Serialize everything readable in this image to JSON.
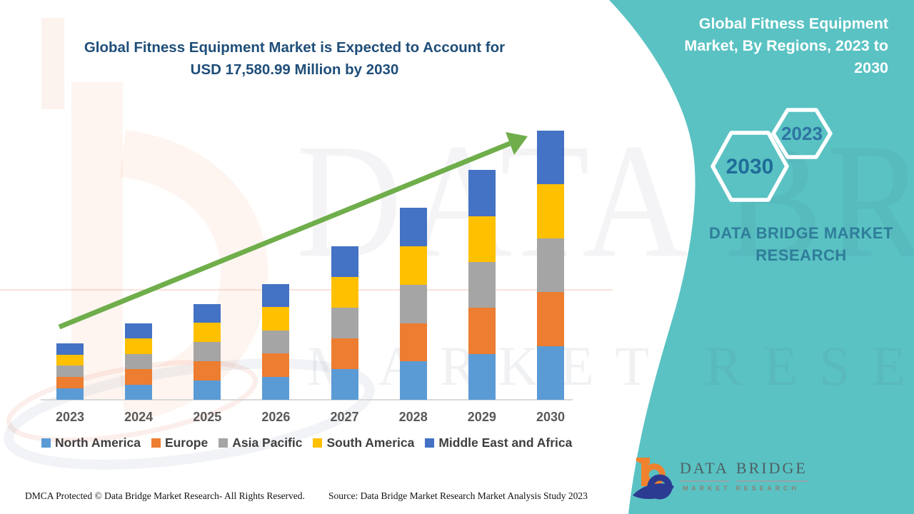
{
  "header": {
    "title_line1": "Global Fitness Equipment Market is Expected to Account for",
    "title_line2": "USD 17,580.99 Million by 2030"
  },
  "sidebar": {
    "title_lines": [
      "Global Fitness Equipment",
      "Market, By Regions, 2023 to",
      "2030"
    ],
    "hexagons": [
      {
        "label": "2023"
      },
      {
        "label": "2030"
      }
    ],
    "brand_line1": "DATA BRIDGE MARKET",
    "brand_line2": "RESEARCH",
    "panel_color": "#5AC2C3",
    "hex_label_color": "#2A6F9E"
  },
  "watermark": {
    "big_text": "DATA BRIDGE",
    "sub_text": "MARKET RESEARCH"
  },
  "footer": {
    "dmca_text": "DMCA Protected © Data Bridge Market Research- All Rights Reserved.",
    "source_text": "Source: Data Bridge Market Research Market Analysis Study 2023",
    "logo": {
      "word1": "DATA",
      "word2": "BRIDGE",
      "tagline": "MARKET RESEARCH"
    }
  },
  "chart_data": {
    "type": "bar",
    "stacked": true,
    "title": "Global Fitness Equipment Market, By Regions, 2023 to 2030",
    "unit": "USD Million",
    "headline_value_2030": "17,580.99",
    "categories": [
      "2023",
      "2024",
      "2025",
      "2026",
      "2027",
      "2028",
      "2029",
      "2030"
    ],
    "series": [
      {
        "name": "North America",
        "color": "#5B9BD5",
        "values": [
          740,
          1000,
          1254,
          1514,
          2006,
          2506,
          3000,
          3516
        ]
      },
      {
        "name": "Europe",
        "color": "#ED7D31",
        "values": [
          740,
          1000,
          1254,
          1514,
          2006,
          2506,
          3000,
          3516
        ]
      },
      {
        "name": "Asia Pacific",
        "color": "#A5A5A5",
        "values": [
          740,
          1000,
          1254,
          1514,
          2006,
          2506,
          3000,
          3516
        ]
      },
      {
        "name": "South America",
        "color": "#FFC000",
        "values": [
          740,
          1000,
          1254,
          1514,
          2006,
          2506,
          3000,
          3516
        ]
      },
      {
        "name": "Middle East and Africa",
        "color": "#4472C4",
        "values": [
          740,
          1000,
          1254,
          1514,
          2006,
          2506,
          3000,
          3517
        ]
      }
    ],
    "totals_estimated": [
      3700,
      5000,
      6270,
      7570,
      10030,
      12530,
      15000,
      17581
    ],
    "ylim": [
      0,
      17581
    ],
    "gridlines": false,
    "legend_position": "bottom",
    "annotations": [
      "green upward trend arrow from 2023 bar to 2030 bar"
    ],
    "trend_arrow_color": "#6FAE4B",
    "axis_line_color": "#D9D9D9"
  }
}
